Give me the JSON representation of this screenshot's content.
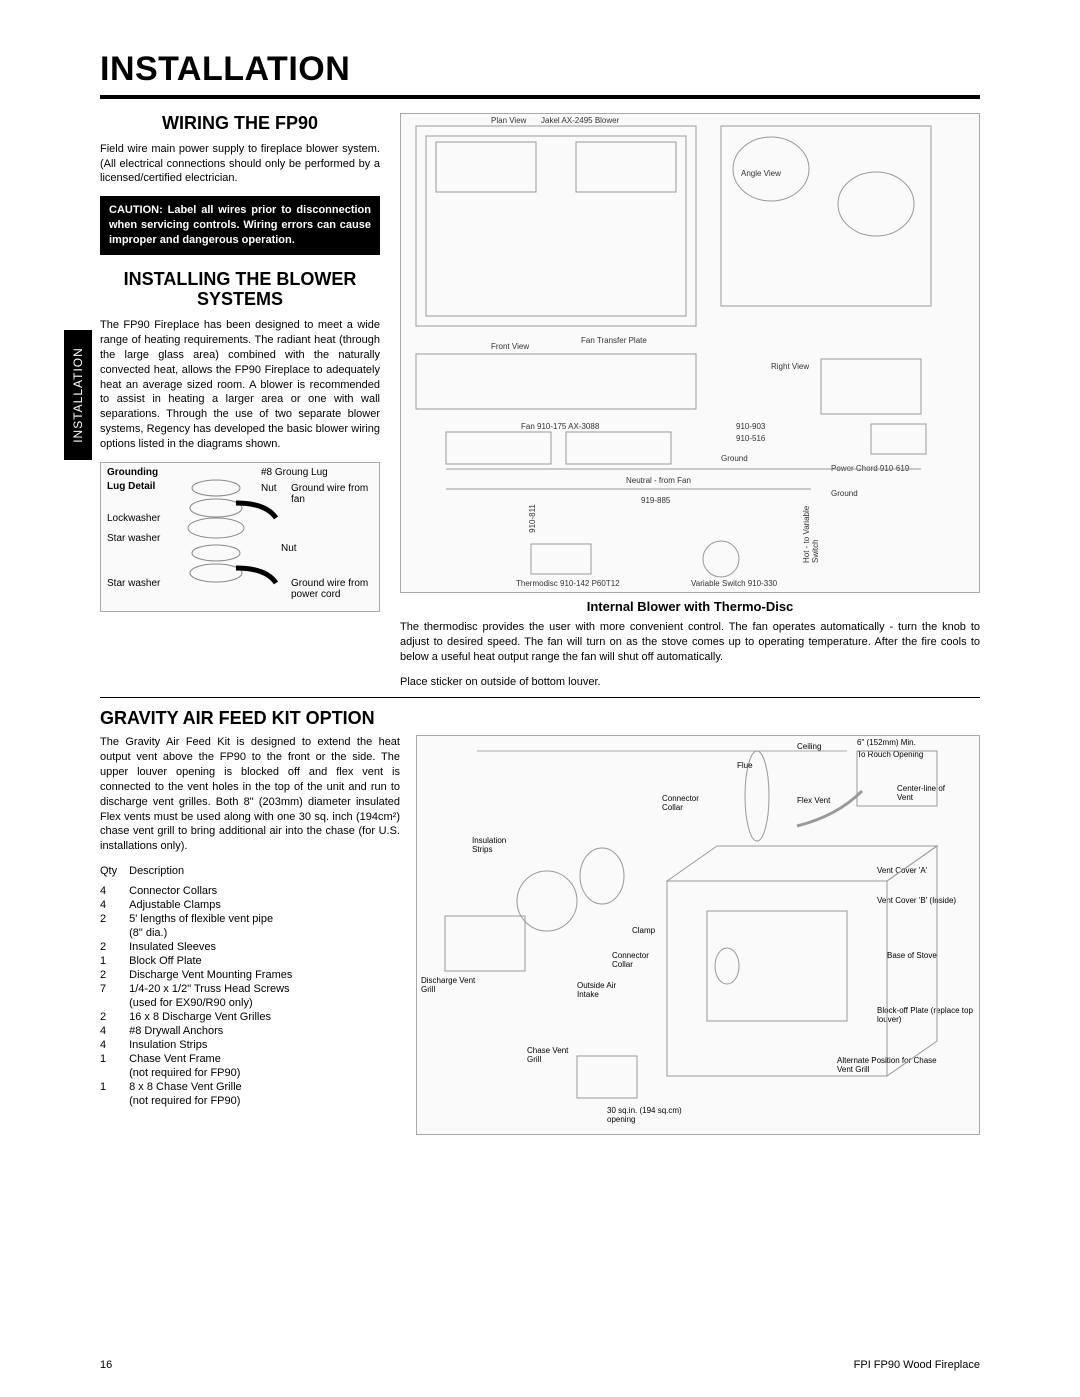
{
  "page_title": "INSTALLATION",
  "side_tab": "INSTALLATION",
  "section1": {
    "heading": "WIRING THE FP90",
    "body": "Field wire main power supply to fireplace blower system.  (All electrical connections should only be performed by a  licensed/certified electrician.",
    "caution": "CAUTION:    Label all wires prior to disconnection when servicing controls. Wiring errors can cause improper and dangerous operation."
  },
  "section2": {
    "heading": "INSTALLING THE BLOWER SYSTEMS",
    "body": "The FP90 Fireplace has been designed to meet a wide range of heating requirements. The radiant heat (through the large glass area) combined with the naturally convected heat, allows the FP90 Fireplace to adequately heat an average sized room. A blower is recommended to assist in heating a larger area or one with wall separations. Through the use of two separate blower systems, Regency has developed the basic blower wiring options listed in the diagrams shown."
  },
  "grounding": {
    "title1": "Grounding",
    "title2": "Lug Detail",
    "l1": "#8 Groung Lug",
    "l2": "Nut",
    "l3": "Ground wire from fan",
    "l4": "Lockwasher",
    "l5": "Star washer",
    "l6": "Nut",
    "l7": "Star washer",
    "l8": "Ground wire from power cord"
  },
  "wiring_diagram": {
    "labels": {
      "plan_view": "Plan View",
      "jakel": "Jakel AX-2495 Blower",
      "angle_view": "Angle View",
      "front_view": "Front View",
      "fan_transfer": "Fan Transfer Plate",
      "right_view": "Right View",
      "fan": "Fan 910-175 AX-3088",
      "p1": "910-903",
      "p2": "910-516",
      "ground": "Ground",
      "neutral": "Neutral - from Fan",
      "p3": "910-811",
      "p4": "919-885",
      "power_chord": "Power Chord 910-619",
      "ground2": "Ground",
      "hot": "Hot - to Variable Switch",
      "thermodisc": "Thermodisc 910-142 P60T12",
      "variable": "Variable Switch 910-330"
    },
    "sub_heading": "Internal Blower with Thermo-Disc",
    "desc": "The thermodisc provides the user with more convenient control.  The fan operates automatically - turn the knob to adjust to desired speed. The fan will turn on as the stove comes up to operating temperature. After the fire cools to below a useful heat output range the fan will shut off automatically.",
    "sticker": "Place sticker on outside of bottom louver."
  },
  "gravity": {
    "heading": "GRAVITY AIR FEED KIT OPTION",
    "body": "The Gravity Air Feed Kit is designed to extend the heat output vent above the FP90 to the front or the side. The upper louver opening is blocked off and flex vent is connected to the vent holes in the top of the unit and run to discharge vent grilles. Both 8\" (203mm) diameter insulated Flex vents must be used along with one 30 sq. inch (194cm²) chase vent grill to bring additional air into the chase (for U.S. installations only).",
    "col_qty": "Qty",
    "col_desc": "Description",
    "parts": [
      {
        "q": "4",
        "d": "Connector Collars"
      },
      {
        "q": "4",
        "d": "Adjustable Clamps"
      },
      {
        "q": "2",
        "d": "5' lengths of flexible vent pipe"
      },
      {
        "q": "",
        "d": "(8\" dia.)"
      },
      {
        "q": "2",
        "d": "Insulated Sleeves"
      },
      {
        "q": "1",
        "d": "Block Off Plate"
      },
      {
        "q": "2",
        "d": "Discharge Vent Mounting Frames"
      },
      {
        "q": "7",
        "d": "1/4-20 x 1/2\" Truss Head Screws"
      },
      {
        "q": "",
        "d": "(used for EX90/R90 only)"
      },
      {
        "q": "2",
        "d": "16 x 8 Discharge Vent Grilles"
      },
      {
        "q": "4",
        "d": "#8 Drywall Anchors"
      },
      {
        "q": "4",
        "d": "Insulation Strips"
      },
      {
        "q": "1",
        "d": "Chase Vent Frame"
      },
      {
        "q": "",
        "d": "(not required for FP90)"
      },
      {
        "q": "1",
        "d": "8 x 8 Chase Vent Grille"
      },
      {
        "q": "",
        "d": "(not required for FP90)"
      }
    ],
    "labels": {
      "ceiling": "Ceiling",
      "min": "6\" (152mm) Min.",
      "rough": "To Rouch Opening",
      "flue": "Flue",
      "centerline": "Center-line of Vent",
      "connector": "Connector Collar",
      "flexvent": "Flex Vent",
      "insulation": "Insulation Strips",
      "ventcovera": "Vent Cover 'A'",
      "ventcoverb": "Vent Cover 'B' (Inside)",
      "clamp": "Clamp",
      "connector2": "Connector Collar",
      "base": "Base of Stove",
      "discharge": "Discharge Vent Grill",
      "outside": "Outside Air Intake",
      "blockoff": "Block-off Plate (replace top louver)",
      "chasevent": "Chase Vent Grill",
      "alternate": "Alternate Position for Chase Vent Grill",
      "opening": "30 sq.in. (194 sq.cm) opening"
    }
  },
  "footer": {
    "page": "16",
    "doc": "FPI FP90 Wood Fireplace"
  }
}
